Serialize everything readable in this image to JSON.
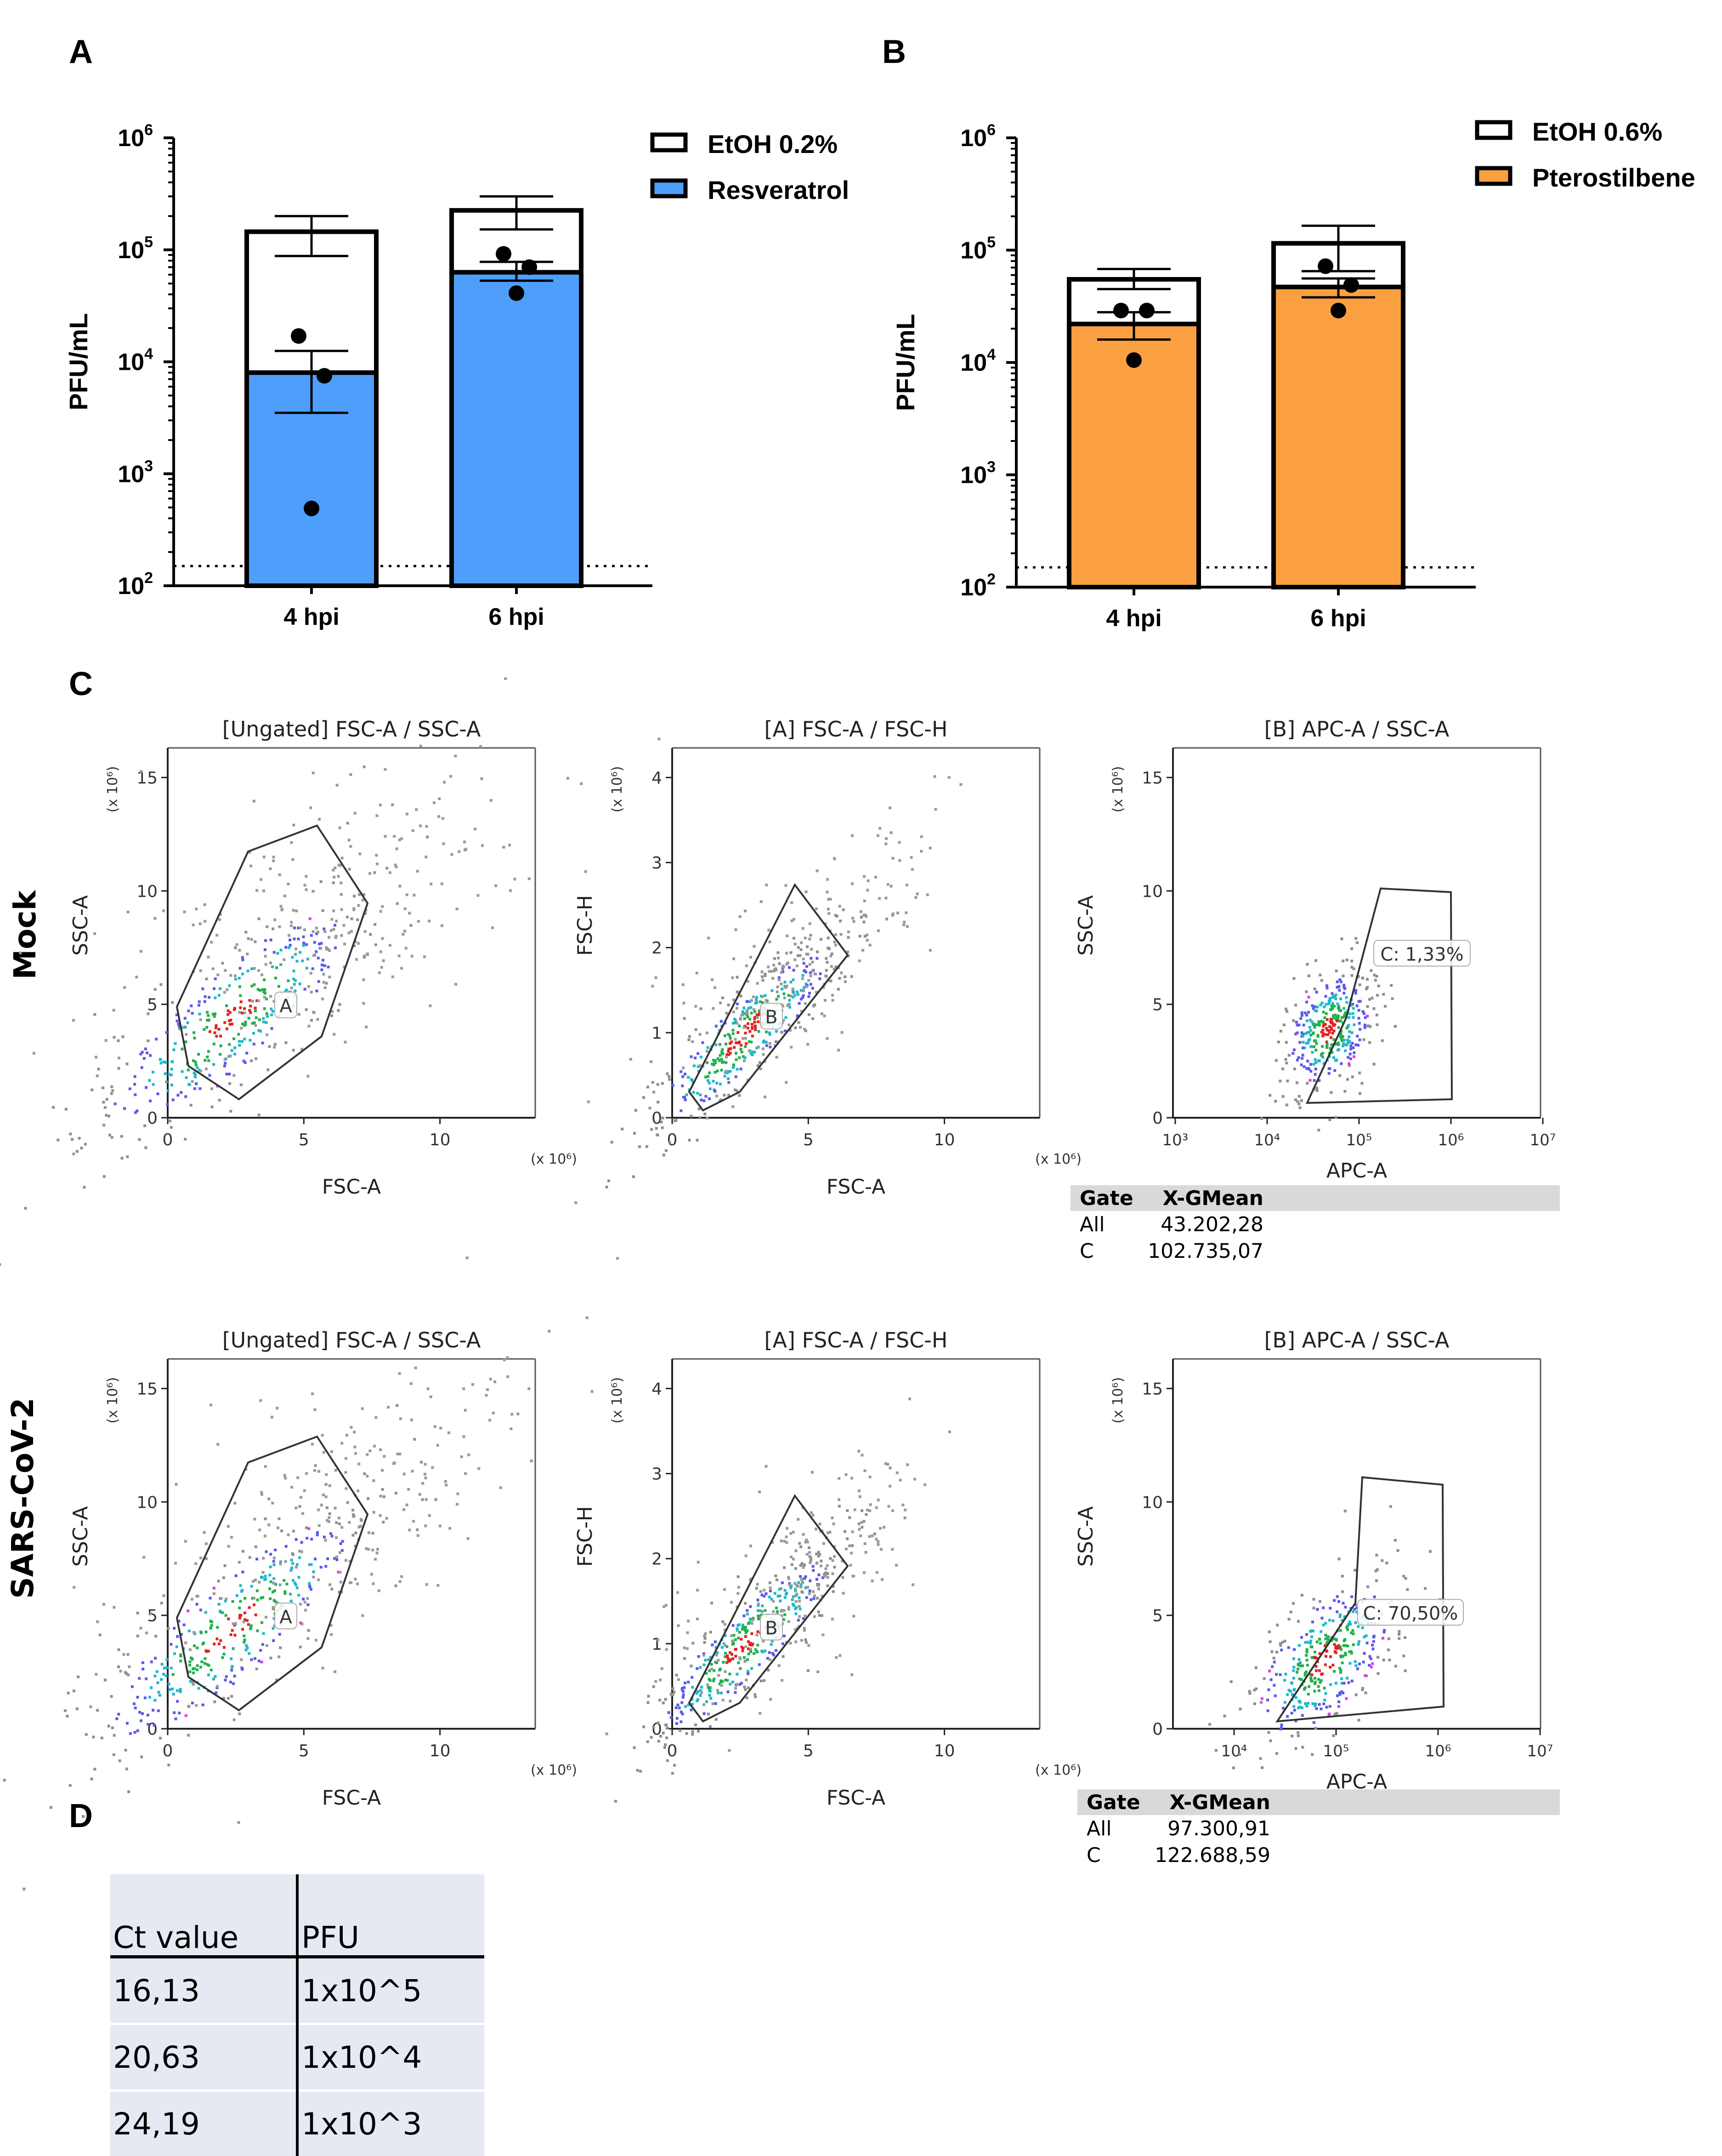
{
  "panels": {
    "a": "A",
    "b": "B",
    "c": "C",
    "d": "D"
  },
  "chart_data": [
    {
      "id": "A",
      "type": "bar",
      "scale": "log",
      "ylabel": "PFU/mL",
      "ylim": [
        100,
        1000000
      ],
      "y_ticks": [
        {
          "base": "10",
          "exp": "6"
        },
        {
          "base": "10",
          "exp": "5"
        },
        {
          "base": "10",
          "exp": "4"
        },
        {
          "base": "10",
          "exp": "3"
        },
        {
          "base": "10",
          "exp": "2"
        }
      ],
      "detection_limit": 150,
      "categories": [
        "4 hpi",
        "6 hpi"
      ],
      "series": [
        {
          "name": "EtOH 0.2%",
          "color": "#ffffff",
          "values": [
            145000,
            225000
          ],
          "err_low": [
            88000,
            152000
          ],
          "err_high": [
            200000,
            300000
          ]
        },
        {
          "name": "Resveratrol",
          "color": "#4e9ffc",
          "values": [
            8000,
            63000
          ],
          "err_low": [
            3500,
            53000
          ],
          "err_high": [
            12500,
            78000
          ],
          "points": [
            [
              17000,
              7500,
              490
            ],
            [
              92000,
              70000,
              41000
            ]
          ]
        }
      ]
    },
    {
      "id": "B",
      "type": "bar",
      "scale": "log",
      "ylabel": "PFU/mL",
      "ylim": [
        100,
        1000000
      ],
      "y_ticks": [
        {
          "base": "10",
          "exp": "6"
        },
        {
          "base": "10",
          "exp": "5"
        },
        {
          "base": "10",
          "exp": "4"
        },
        {
          "base": "10",
          "exp": "3"
        },
        {
          "base": "10",
          "exp": "2"
        }
      ],
      "detection_limit": 150,
      "categories": [
        "4 hpi",
        "6 hpi"
      ],
      "series": [
        {
          "name": "EtOH 0.6%",
          "color": "#ffffff",
          "values": [
            55000,
            115000
          ],
          "err_low": [
            45000,
            65000
          ],
          "err_high": [
            68000,
            165000
          ]
        },
        {
          "name": "Pterostilbene",
          "color": "#fba040",
          "values": [
            22000,
            47000
          ],
          "err_low": [
            16000,
            38000
          ],
          "err_high": [
            28000,
            56000
          ],
          "points": [
            [
              29000,
              29000,
              10500
            ],
            [
              72000,
              49000,
              29000
            ]
          ]
        }
      ]
    }
  ],
  "flow": {
    "row_labels": [
      "Mock",
      "SARS-CoV-2"
    ],
    "plot_titles": [
      "[Ungated] FSC-A / SSC-A",
      "[A] FSC-A / FSC-H",
      "[B] APC-A / SSC-A"
    ],
    "axis_labels": {
      "fsc_a": "FSC-A",
      "ssc_a": "SSC-A",
      "fsc_h": "FSC-H",
      "apc_a": "APC-A"
    },
    "multiplier": "(x 10⁶)",
    "lin_ticks_15": [
      "0",
      "5",
      "10",
      "15"
    ],
    "lin_ticks_4": [
      "0",
      "1",
      "2",
      "3",
      "4"
    ],
    "x_ticks": [
      "0",
      "5",
      "10"
    ],
    "log_ticks_mock": [
      "10³",
      "10⁴",
      "10⁵",
      "10⁶",
      "10⁷"
    ],
    "log_ticks_sars": [
      "10⁴",
      "10⁵",
      "10⁶",
      "10⁷"
    ],
    "gate_labels": {
      "a": "A",
      "b": "B"
    },
    "gate_c_mock": "C: 1,33%",
    "gate_c_sars": "C: 70,50%",
    "stats_mock": {
      "hdr_gate": "Gate",
      "hdr_val": "X-GMean",
      "rows": [
        {
          "gate": "All",
          "val": "43.202,28"
        },
        {
          "gate": "C",
          "val": "102.735,07"
        }
      ]
    },
    "stats_sars": {
      "hdr_gate": "Gate",
      "hdr_val": "X-GMean",
      "rows": [
        {
          "gate": "All",
          "val": "97.300,91"
        },
        {
          "gate": "C",
          "val": "122.688,59"
        }
      ]
    }
  },
  "table": {
    "headers": [
      "Ct value",
      "PFU"
    ],
    "rows": [
      [
        "16,13",
        "1x10^5"
      ],
      [
        "20,63",
        "1x10^4"
      ],
      [
        "24,19",
        "1x10^3"
      ]
    ]
  }
}
